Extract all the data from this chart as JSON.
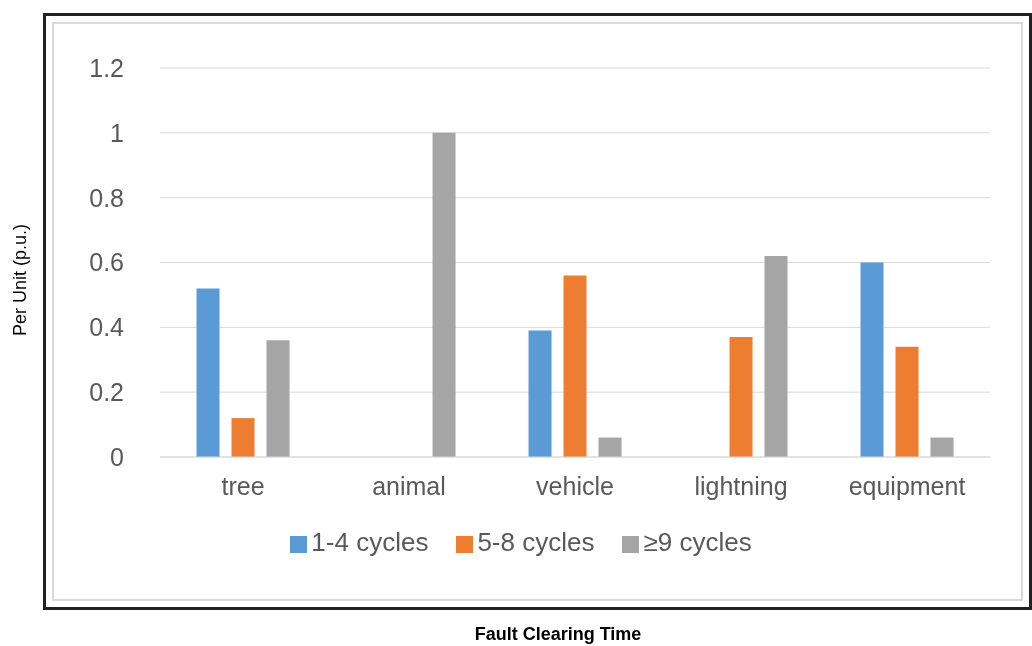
{
  "chart_data": {
    "type": "bar",
    "annotations": [
      "Fault Clearing Time"
    ],
    "ylabel": "Per Unit (p.u.)",
    "categories": [
      "tree",
      "animal",
      "vehicle",
      "lightning",
      "equipment"
    ],
    "series": [
      {
        "name": "1-4 cycles",
        "color": "#5b9bd5",
        "values": [
          0.52,
          0,
          0.39,
          0,
          0.6
        ]
      },
      {
        "name": "5-8 cycles",
        "color": "#ed7d31",
        "values": [
          0.12,
          0,
          0.56,
          0.37,
          0.34
        ]
      },
      {
        "name": "≥9 cycles",
        "color": "#a5a5a5",
        "values": [
          0.36,
          1,
          0.06,
          0.62,
          0.06
        ]
      }
    ],
    "ylim": [
      0,
      1.2
    ],
    "yticks": [
      0,
      0.2,
      0.4,
      0.6,
      0.8,
      1,
      1.2
    ],
    "grid": "y",
    "legend": "bottom"
  }
}
